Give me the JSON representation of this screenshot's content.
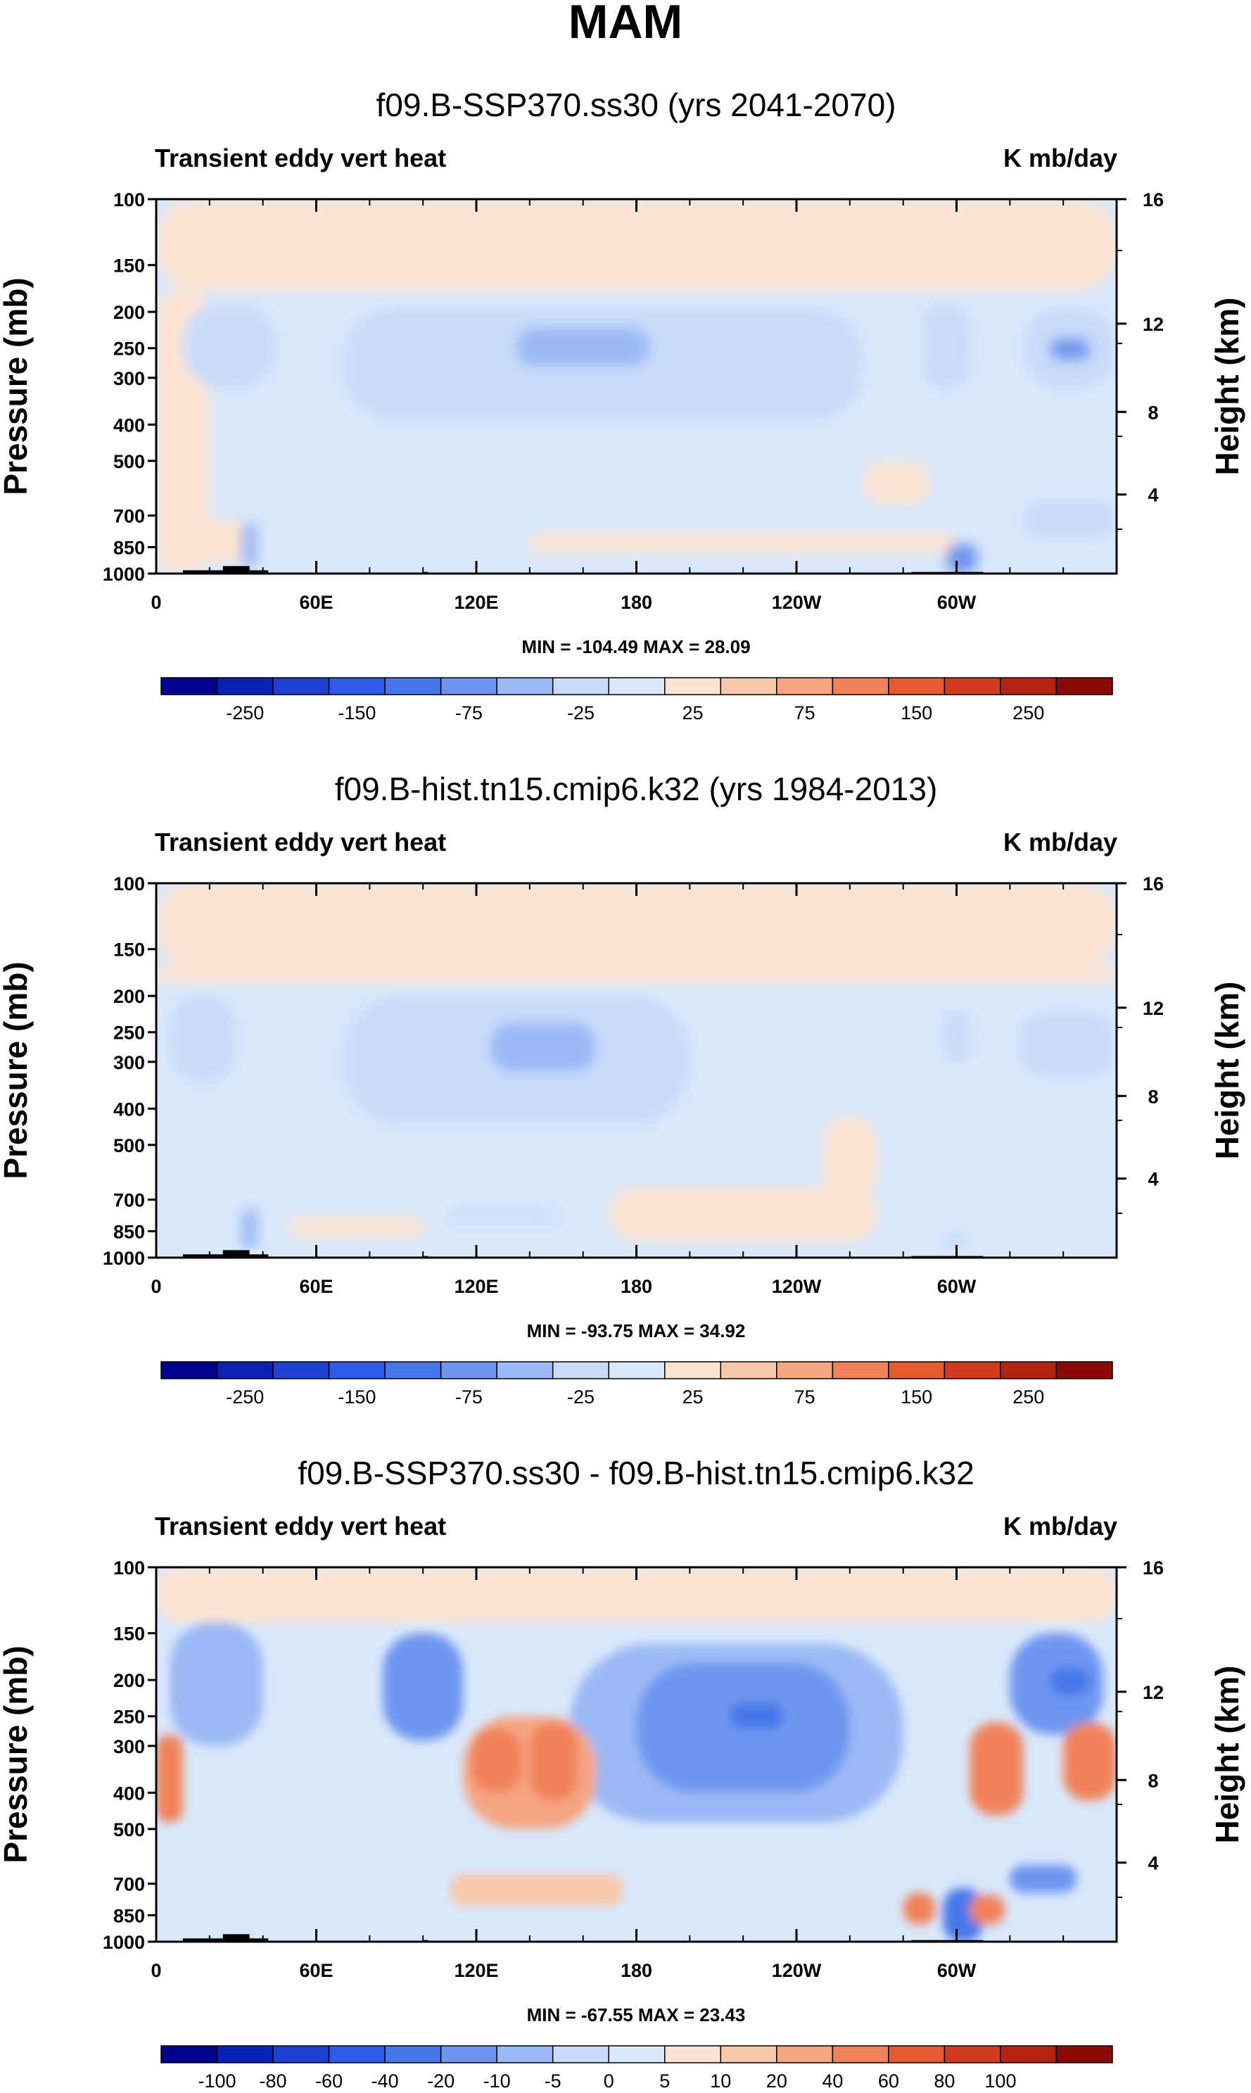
{
  "figure": {
    "title": "MAM"
  },
  "panels": [
    {
      "title": "f09.B-SSP370.ss30 (yrs 2041-2070)",
      "left_label": "Transient eddy vert heat",
      "right_label": "K mb/day",
      "ylabel": "Pressure (mb)",
      "ylabel_right": "Height (km)",
      "minmax": "MIN = -104.49  MAX =  28.09",
      "colorbar_labels": [
        "-250",
        "-150",
        "-75",
        "-25",
        "25",
        "75",
        "150",
        "250"
      ]
    },
    {
      "title": "f09.B-hist.tn15.cmip6.k32 (yrs 1984-2013)",
      "left_label": "Transient eddy vert heat",
      "right_label": "K mb/day",
      "ylabel": "Pressure (mb)",
      "ylabel_right": "Height (km)",
      "minmax": "MIN = -93.75  MAX =  34.92",
      "colorbar_labels": [
        "-250",
        "-150",
        "-75",
        "-25",
        "25",
        "75",
        "150",
        "250"
      ]
    },
    {
      "title": "f09.B-SSP370.ss30 - f09.B-hist.tn15.cmip6.k32",
      "left_label": "Transient eddy vert heat",
      "right_label": "K mb/day",
      "ylabel": "Pressure (mb)",
      "ylabel_right": "Height (km)",
      "minmax": "MIN = -67.55  MAX =  23.43",
      "colorbar_labels": [
        "-100",
        "-80",
        "-60",
        "-40",
        "-20",
        "-10",
        "-5",
        "0",
        "5",
        "10",
        "20",
        "40",
        "60",
        "80",
        "100"
      ]
    }
  ],
  "colors": {
    "palette": [
      "#00008f",
      "#0a23b4",
      "#1e41d2",
      "#2d5ae6",
      "#4678eb",
      "#6e96ef",
      "#9bb9f5",
      "#c8dcfa",
      "#d9e8fb",
      "#fde4d2",
      "#f8c8aa",
      "#f5a582",
      "#f0825a",
      "#e65a32",
      "#d23c1e",
      "#b4230f",
      "#8c0a05"
    ],
    "background_positive": "#fde4d2",
    "background_negative": "#d9e8fb",
    "terrain": "#000000"
  },
  "chart_data": [
    {
      "type": "heatmap",
      "title": "f09.B-SSP370.ss30 (yrs 2041-2070)",
      "ylabel": "Pressure (mb)",
      "y2label": "Height (km)",
      "xticks": [
        "0",
        "60E",
        "120E",
        "180",
        "120W",
        "60W"
      ],
      "xtick_lon": [
        0,
        60,
        120,
        180,
        240,
        300
      ],
      "xlim": [
        0,
        360
      ],
      "yticks": [
        "100",
        "150",
        "200",
        "250",
        "300",
        "400",
        "500",
        "700",
        "850",
        "1000"
      ],
      "ytick_values": [
        100,
        150,
        200,
        250,
        300,
        400,
        500,
        700,
        850,
        1000
      ],
      "ylim": [
        1000,
        100
      ],
      "y2ticks": [
        "4",
        "8",
        "12",
        "16"
      ],
      "y2tick_values": [
        4,
        8,
        12,
        16
      ],
      "y2tick_pressure": [
        615,
        370,
        215,
        100
      ],
      "units": "K mb/day",
      "min": -104.49,
      "max": 28.09,
      "contour_levels": [
        -300,
        -250,
        -200,
        -150,
        -100,
        -75,
        -50,
        -25,
        0,
        25,
        50,
        75,
        100,
        150,
        200,
        250,
        300
      ],
      "features": [
        {
          "lon": [
            0,
            360
          ],
          "p": [
            100,
            175
          ],
          "value": 10
        },
        {
          "lon": [
            0,
            20
          ],
          "p": [
            175,
            1000
          ],
          "value": 10
        },
        {
          "lon": [
            10,
            45
          ],
          "p": [
            190,
            320
          ],
          "value": -40
        },
        {
          "lon": [
            70,
            265
          ],
          "p": [
            195,
            390
          ],
          "value": -40
        },
        {
          "lon": [
            135,
            185
          ],
          "p": [
            220,
            280
          ],
          "value": -60
        },
        {
          "lon": [
            287,
            305
          ],
          "p": [
            190,
            320
          ],
          "value": -40
        },
        {
          "lon": [
            325,
            360
          ],
          "p": [
            195,
            320
          ],
          "value": -40
        },
        {
          "lon": [
            335,
            350
          ],
          "p": [
            235,
            270
          ],
          "value": -90
        },
        {
          "lon": [
            140,
            300
          ],
          "p": [
            780,
            880
          ],
          "value": 10
        },
        {
          "lon": [
            0,
            35
          ],
          "p": [
            720,
            930
          ],
          "value": 10
        },
        {
          "lon": [
            32,
            38
          ],
          "p": [
            730,
            960
          ],
          "value": -60
        },
        {
          "lon": [
            296,
            308
          ],
          "p": [
            830,
            1000
          ],
          "value": -100
        },
        {
          "lon": [
            265,
            290
          ],
          "p": [
            500,
            650
          ],
          "value": 10
        },
        {
          "lon": [
            325,
            360
          ],
          "p": [
            640,
            800
          ],
          "value": -40
        }
      ],
      "terrain": [
        {
          "lon": [
            10,
            25
          ],
          "p_top": 980
        },
        {
          "lon": [
            25,
            35
          ],
          "p_top": 955
        },
        {
          "lon": [
            35,
            42
          ],
          "p_top": 980
        },
        {
          "lon": [
            100,
            102
          ],
          "p_top": 990
        },
        {
          "lon": [
            283,
            310
          ],
          "p_top": 990
        }
      ]
    },
    {
      "type": "heatmap",
      "title": "f09.B-hist.tn15.cmip6.k32 (yrs 1984-2013)",
      "ylabel": "Pressure (mb)",
      "y2label": "Height (km)",
      "xticks": [
        "0",
        "60E",
        "120E",
        "180",
        "120W",
        "60W"
      ],
      "xtick_lon": [
        0,
        60,
        120,
        180,
        240,
        300
      ],
      "xlim": [
        0,
        360
      ],
      "yticks": [
        "100",
        "150",
        "200",
        "250",
        "300",
        "400",
        "500",
        "700",
        "850",
        "1000"
      ],
      "ytick_values": [
        100,
        150,
        200,
        250,
        300,
        400,
        500,
        700,
        850,
        1000
      ],
      "ylim": [
        1000,
        100
      ],
      "y2ticks": [
        "4",
        "8",
        "12",
        "16"
      ],
      "y2tick_values": [
        4,
        8,
        12,
        16
      ],
      "y2tick_pressure": [
        615,
        370,
        215,
        100
      ],
      "units": "K mb/day",
      "min": -93.75,
      "max": 34.92,
      "contour_levels": [
        -300,
        -250,
        -200,
        -150,
        -100,
        -75,
        -50,
        -25,
        0,
        25,
        50,
        75,
        100,
        150,
        200,
        250,
        300
      ],
      "features": [
        {
          "lon": [
            0,
            360
          ],
          "p": [
            100,
            165
          ],
          "value": 10
        },
        {
          "lon": [
            0,
            360
          ],
          "p": [
            165,
            185
          ],
          "value": 10
        },
        {
          "lon": [
            5,
            30
          ],
          "p": [
            200,
            340
          ],
          "value": -40
        },
        {
          "lon": [
            70,
            200
          ],
          "p": [
            200,
            440
          ],
          "value": -40
        },
        {
          "lon": [
            125,
            165
          ],
          "p": [
            235,
            320
          ],
          "value": -60
        },
        {
          "lon": [
            323,
            360
          ],
          "p": [
            220,
            330
          ],
          "value": -40
        },
        {
          "lon": [
            295,
            305
          ],
          "p": [
            220,
            300
          ],
          "value": -40
        },
        {
          "lon": [
            170,
            270
          ],
          "p": [
            650,
            900
          ],
          "value": 10
        },
        {
          "lon": [
            250,
            270
          ],
          "p": [
            420,
            700
          ],
          "value": 10
        },
        {
          "lon": [
            50,
            100
          ],
          "p": [
            780,
            880
          ],
          "value": 10
        },
        {
          "lon": [
            32,
            38
          ],
          "p": [
            740,
            950
          ],
          "value": -60
        },
        {
          "lon": [
            110,
            150
          ],
          "p": [
            740,
            800
          ],
          "value": -40
        },
        {
          "lon": [
            296,
            304
          ],
          "p": [
            850,
            950
          ],
          "value": -40
        }
      ],
      "terrain": [
        {
          "lon": [
            10,
            25
          ],
          "p_top": 980
        },
        {
          "lon": [
            25,
            35
          ],
          "p_top": 955
        },
        {
          "lon": [
            35,
            42
          ],
          "p_top": 980
        },
        {
          "lon": [
            100,
            102
          ],
          "p_top": 990
        },
        {
          "lon": [
            283,
            310
          ],
          "p_top": 990
        }
      ]
    },
    {
      "type": "heatmap",
      "title": "f09.B-SSP370.ss30 - f09.B-hist.tn15.cmip6.k32",
      "ylabel": "Pressure (mb)",
      "y2label": "Height (km)",
      "xticks": [
        "0",
        "60E",
        "120E",
        "180",
        "120W",
        "60W"
      ],
      "xtick_lon": [
        0,
        60,
        120,
        180,
        240,
        300
      ],
      "xlim": [
        0,
        360
      ],
      "yticks": [
        "100",
        "150",
        "200",
        "250",
        "300",
        "400",
        "500",
        "700",
        "850",
        "1000"
      ],
      "ytick_values": [
        100,
        150,
        200,
        250,
        300,
        400,
        500,
        700,
        850,
        1000
      ],
      "ylim": [
        1000,
        100
      ],
      "y2ticks": [
        "4",
        "8",
        "12",
        "16"
      ],
      "y2tick_values": [
        4,
        8,
        12,
        16
      ],
      "y2tick_pressure": [
        615,
        370,
        215,
        100
      ],
      "units": "K mb/day",
      "min": -67.55,
      "max": 23.43,
      "contour_levels": [
        -120,
        -100,
        -80,
        -60,
        -40,
        -20,
        -10,
        -5,
        0,
        5,
        10,
        20,
        40,
        60,
        80,
        100,
        120
      ],
      "features": [
        {
          "lon": [
            0,
            360
          ],
          "p": [
            100,
            140
          ],
          "value": 2
        },
        {
          "lon": [
            5,
            40
          ],
          "p": [
            140,
            300
          ],
          "value": -12
        },
        {
          "lon": [
            85,
            115
          ],
          "p": [
            150,
            290
          ],
          "value": -25
        },
        {
          "lon": [
            95,
            110
          ],
          "p": [
            180,
            240
          ],
          "value": -40
        },
        {
          "lon": [
            155,
            280
          ],
          "p": [
            160,
            480
          ],
          "value": -12
        },
        {
          "lon": [
            180,
            260
          ],
          "p": [
            180,
            400
          ],
          "value": -25
        },
        {
          "lon": [
            215,
            235
          ],
          "p": [
            230,
            270
          ],
          "value": -50
        },
        {
          "lon": [
            320,
            355
          ],
          "p": [
            150,
            280
          ],
          "value": -25
        },
        {
          "lon": [
            335,
            350
          ],
          "p": [
            185,
            220
          ],
          "value": -50
        },
        {
          "lon": [
            115,
            165
          ],
          "p": [
            250,
            500
          ],
          "value": 12
        },
        {
          "lon": [
            118,
            137
          ],
          "p": [
            270,
            400
          ],
          "value": 25
        },
        {
          "lon": [
            140,
            158
          ],
          "p": [
            260,
            420
          ],
          "value": 25
        },
        {
          "lon": [
            0,
            10
          ],
          "p": [
            280,
            480
          ],
          "value": 20
        },
        {
          "lon": [
            305,
            325
          ],
          "p": [
            260,
            460
          ],
          "value": 20
        },
        {
          "lon": [
            340,
            360
          ],
          "p": [
            260,
            420
          ],
          "value": 20
        },
        {
          "lon": [
            0,
            360
          ],
          "p": [
            560,
            620
          ],
          "value": -3
        },
        {
          "lon": [
            110,
            175
          ],
          "p": [
            660,
            800
          ],
          "value": 8
        },
        {
          "lon": [
            320,
            345
          ],
          "p": [
            620,
            740
          ],
          "value": -25
        },
        {
          "lon": [
            295,
            310
          ],
          "p": [
            720,
            1000
          ],
          "value": -45
        },
        {
          "lon": [
            280,
            292
          ],
          "p": [
            740,
            900
          ],
          "value": 20
        },
        {
          "lon": [
            305,
            318
          ],
          "p": [
            750,
            900
          ],
          "value": 20
        }
      ],
      "terrain": [
        {
          "lon": [
            10,
            25
          ],
          "p_top": 980
        },
        {
          "lon": [
            25,
            35
          ],
          "p_top": 955
        },
        {
          "lon": [
            35,
            42
          ],
          "p_top": 980
        },
        {
          "lon": [
            100,
            102
          ],
          "p_top": 990
        },
        {
          "lon": [
            283,
            310
          ],
          "p_top": 990
        }
      ]
    }
  ]
}
